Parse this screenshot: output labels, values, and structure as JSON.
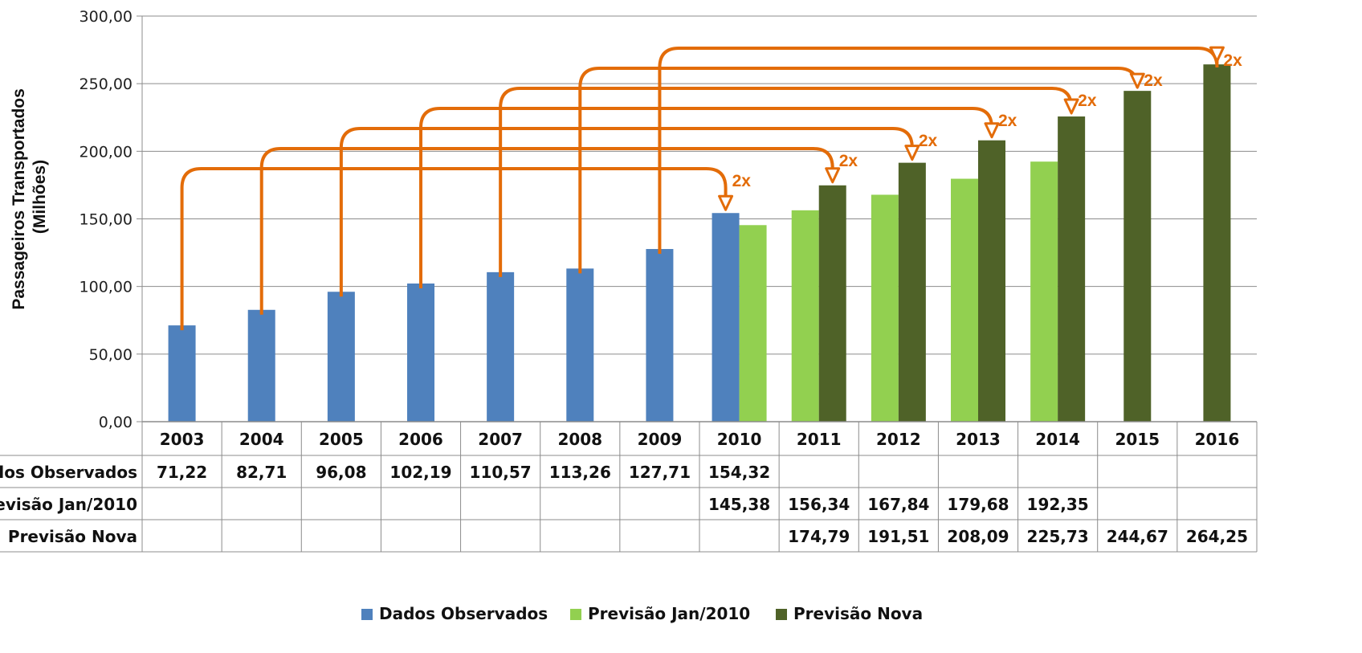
{
  "chart_data": {
    "type": "bar",
    "title": "",
    "ylabel_lines": [
      "Passageiros Transportados",
      "(Milhões)"
    ],
    "ylim": [
      0,
      300
    ],
    "y_ticks": [
      "0,00",
      "50,00",
      "100,00",
      "150,00",
      "200,00",
      "250,00",
      "300,00"
    ],
    "grid": true,
    "legend_position": "bottom",
    "categories": [
      "2003",
      "2004",
      "2005",
      "2006",
      "2007",
      "2008",
      "2009",
      "2010",
      "2011",
      "2012",
      "2013",
      "2014",
      "2015",
      "2016"
    ],
    "series": [
      {
        "name": "Dados Observados",
        "table_label": "Dados Observados",
        "color": "#4f81bd",
        "values": [
          71.22,
          82.71,
          96.08,
          102.19,
          110.57,
          113.26,
          127.71,
          154.32,
          null,
          null,
          null,
          null,
          null,
          null
        ],
        "labels": [
          "71,22",
          "82,71",
          "96,08",
          "102,19",
          "110,57",
          "113,26",
          "127,71",
          "154,32",
          "",
          "",
          "",
          "",
          "",
          ""
        ]
      },
      {
        "name": "Previsão Jan/2010",
        "table_label": "Previsão Jan/2010",
        "color": "#92d050",
        "values": [
          null,
          null,
          null,
          null,
          null,
          null,
          null,
          145.38,
          156.34,
          167.84,
          179.68,
          192.35,
          null,
          null
        ],
        "labels": [
          "",
          "",
          "",
          "",
          "",
          "",
          "",
          "145,38",
          "156,34",
          "167,84",
          "179,68",
          "192,35",
          "",
          ""
        ]
      },
      {
        "name": "Previsão Nova",
        "table_label": "Previsão Nova",
        "color": "#4f6228",
        "values": [
          null,
          null,
          null,
          null,
          null,
          null,
          null,
          null,
          174.79,
          191.51,
          208.09,
          225.73,
          244.67,
          264.25
        ],
        "labels": [
          "",
          "",
          "",
          "",
          "",
          "",
          "",
          "",
          "174,79",
          "191,51",
          "208,09",
          "225,73",
          "244,67",
          "264,25"
        ]
      }
    ],
    "annotations": {
      "text": "2x",
      "color": "#e36c09",
      "arrows": [
        {
          "from": "2003",
          "to": "2010"
        },
        {
          "from": "2004",
          "to": "2011"
        },
        {
          "from": "2005",
          "to": "2012"
        },
        {
          "from": "2006",
          "to": "2013"
        },
        {
          "from": "2007",
          "to": "2014"
        },
        {
          "from": "2008",
          "to": "2015"
        },
        {
          "from": "2009",
          "to": "2016"
        }
      ]
    }
  }
}
